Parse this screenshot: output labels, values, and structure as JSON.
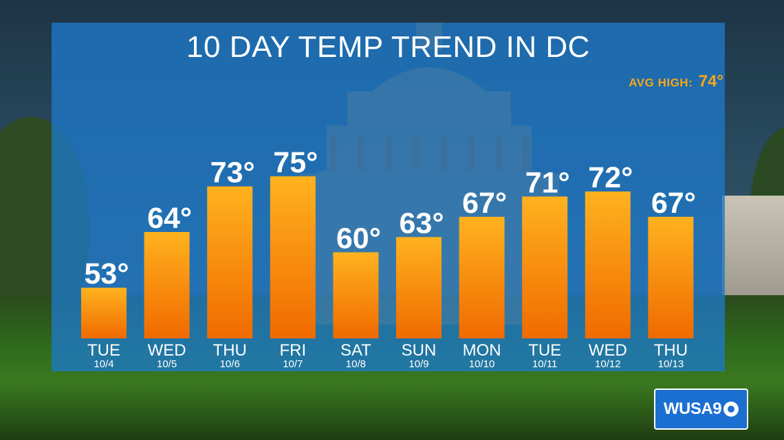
{
  "title": "10 DAY TEMP TREND IN DC",
  "avg_high": {
    "label": "AVG HIGH:",
    "value": "74°"
  },
  "logo": {
    "text": "WUSA9"
  },
  "colors": {
    "panel": "#1e78c8",
    "bar_top": "#ffb21e",
    "bar_bottom": "#f06a00",
    "accent": "#f7a51a",
    "text": "#ffffff"
  },
  "chart_data": {
    "type": "bar",
    "categories": [
      "TUE",
      "WED",
      "THU",
      "FRI",
      "SAT",
      "SUN",
      "MON",
      "TUE",
      "WED",
      "THU"
    ],
    "dates": [
      "10/4",
      "10/5",
      "10/6",
      "10/7",
      "10/8",
      "10/9",
      "10/10",
      "10/11",
      "10/12",
      "10/13"
    ],
    "values": [
      53,
      64,
      73,
      75,
      60,
      63,
      67,
      71,
      72,
      67
    ],
    "value_labels": [
      "53°",
      "64°",
      "73°",
      "75°",
      "60°",
      "63°",
      "67°",
      "71°",
      "72°",
      "67°"
    ],
    "title": "10 DAY TEMP TREND IN DC",
    "ylim": [
      43,
      85
    ],
    "grid": false,
    "legend": "none"
  }
}
